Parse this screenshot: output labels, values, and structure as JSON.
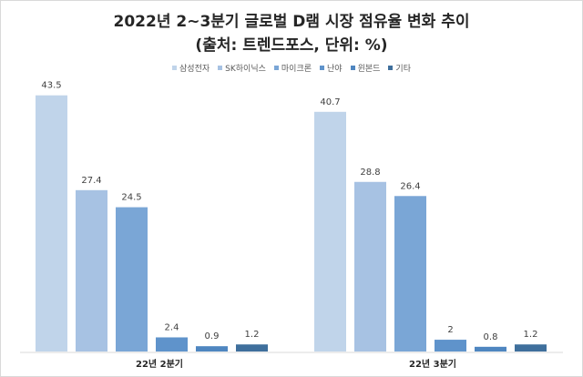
{
  "chart_data": {
    "type": "bar",
    "title": "2022년 2~3분기 글로벌 D램 시장 점유율 변화 추이",
    "subtitle": "(출처: 트렌드포스, 단위: %)",
    "categories": [
      "22년 2분기",
      "22년 3분기"
    ],
    "series": [
      {
        "name": "삼성전자",
        "values": [
          43.5,
          40.7
        ],
        "color": "#c0d4ea"
      },
      {
        "name": "SK하이닉스",
        "values": [
          27.4,
          28.8
        ],
        "color": "#a7c2e3"
      },
      {
        "name": "마이크론",
        "values": [
          24.5,
          26.4
        ],
        "color": "#7aa6d6"
      },
      {
        "name": "난야",
        "values": [
          2.4,
          2
        ],
        "color": "#5f93cb"
      },
      {
        "name": "윈본드",
        "values": [
          0.9,
          0.8
        ],
        "color": "#4f86c0"
      },
      {
        "name": "기타",
        "values": [
          1.2,
          1.2
        ],
        "color": "#3f6f9c"
      }
    ],
    "ylim": [
      0,
      45
    ],
    "grid": false,
    "legend_position": "top"
  }
}
